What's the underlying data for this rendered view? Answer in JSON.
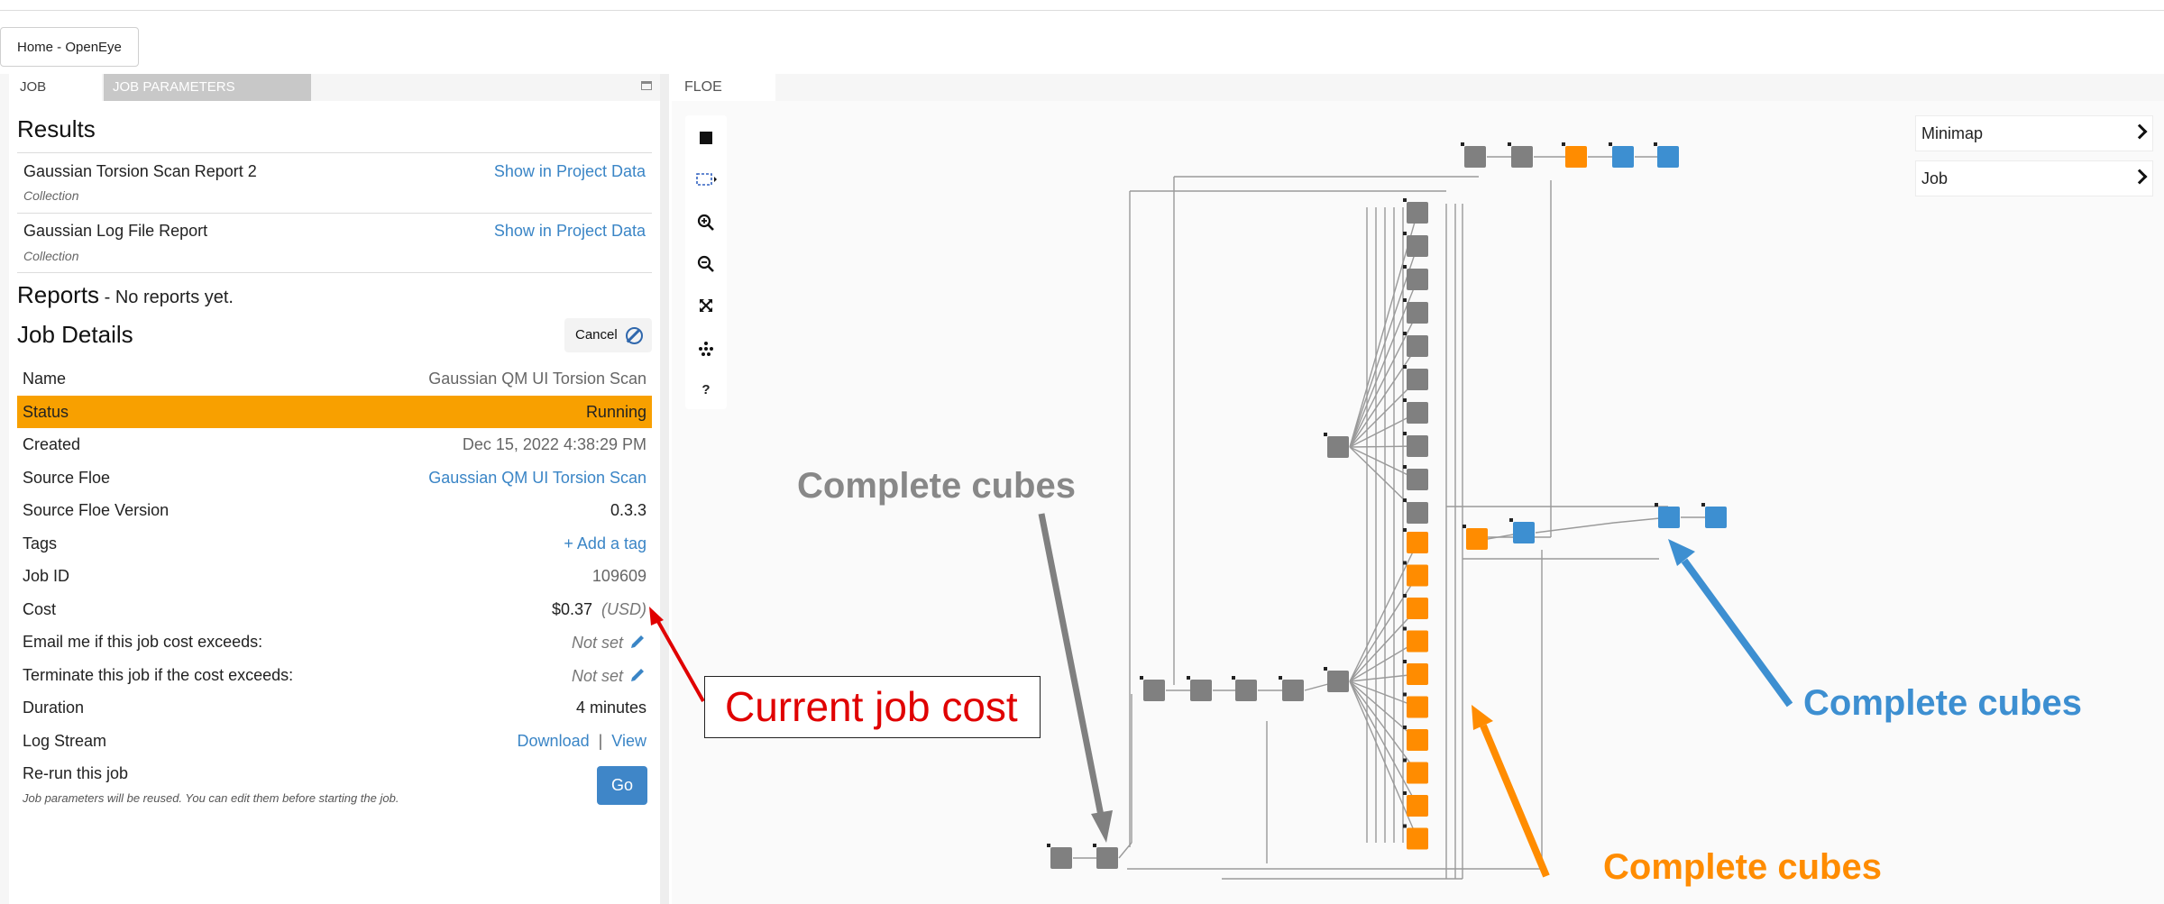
{
  "window": {
    "home_tab": "Home - OpenEye"
  },
  "left_panel": {
    "tabs": {
      "job": "JOB",
      "params": "JOB PARAMETERS"
    },
    "results_title": "Results",
    "results": [
      {
        "name": "Gaussian Torsion Scan Report 2",
        "type": "Collection",
        "link": "Show in Project Data"
      },
      {
        "name": "Gaussian Log File Report",
        "type": "Collection",
        "link": "Show in Project Data"
      }
    ],
    "reports_title": "Reports",
    "reports_note": " - No reports yet.",
    "details_title": "Job Details",
    "cancel_label": "Cancel",
    "details": {
      "name_label": "Name",
      "name_value": "Gaussian QM UI Torsion Scan",
      "status_label": "Status",
      "status_value": "Running",
      "created_label": "Created",
      "created_value": "Dec 15, 2022 4:38:29 PM",
      "floe_label": "Source Floe",
      "floe_value": "Gaussian QM UI Torsion Scan",
      "version_label": "Source Floe Version",
      "version_value": "0.3.3",
      "tags_label": "Tags",
      "tags_value": "+ Add a tag",
      "jobid_label": "Job ID",
      "jobid_value": "109609",
      "cost_label": "Cost",
      "cost_value": "$0.37",
      "cost_unit": "(USD)",
      "email_label": "Email me if this job cost exceeds:",
      "email_value": "Not set",
      "terminate_label": "Terminate this job if the cost exceeds:",
      "terminate_value": "Not set",
      "duration_label": "Duration",
      "duration_value": "4 minutes",
      "log_label": "Log Stream",
      "log_download": "Download",
      "log_sep": "|",
      "log_view": "View"
    },
    "rerun_label": "Re-run this job",
    "rerun_note": "Job parameters will be reused. You can edit them before starting the job.",
    "go_label": "Go"
  },
  "floe_panel": {
    "tab": "FLOE",
    "side_buttons": [
      "Minimap",
      "Job"
    ],
    "help_label": "?"
  },
  "annotations": {
    "gray_callout": "Complete cubes",
    "blue_callout": "Complete cubes",
    "orange_callout": "Complete cubes",
    "cost_callout": "Current job cost"
  },
  "colors": {
    "status_running": "#f8a000",
    "cube_complete_gray": "#808080",
    "cube_orange": "#ff8c00",
    "cube_blue": "#3d8fd1",
    "link": "#3a85c6",
    "callout_red": "#e00000"
  }
}
